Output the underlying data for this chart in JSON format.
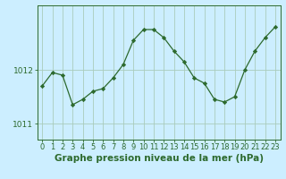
{
  "x": [
    0,
    1,
    2,
    3,
    4,
    5,
    6,
    7,
    8,
    9,
    10,
    11,
    12,
    13,
    14,
    15,
    16,
    17,
    18,
    19,
    20,
    21,
    22,
    23
  ],
  "y": [
    1011.7,
    1011.95,
    1011.9,
    1011.35,
    1011.45,
    1011.6,
    1011.65,
    1011.85,
    1012.1,
    1012.55,
    1012.75,
    1012.75,
    1012.6,
    1012.35,
    1012.15,
    1011.85,
    1011.75,
    1011.45,
    1011.4,
    1011.5,
    1012.0,
    1012.35,
    1012.6,
    1012.8
  ],
  "line_color": "#2d6a2d",
  "marker_color": "#2d6a2d",
  "bg_color": "#cceeff",
  "grid_color": "#aaccbb",
  "axis_color": "#2d6a2d",
  "title": "Graphe pression niveau de la mer (hPa)",
  "yticks": [
    1011,
    1012
  ],
  "ylim": [
    1010.7,
    1013.2
  ],
  "xlim": [
    -0.5,
    23.5
  ],
  "title_fontsize": 7.5,
  "tick_fontsize": 6.5
}
